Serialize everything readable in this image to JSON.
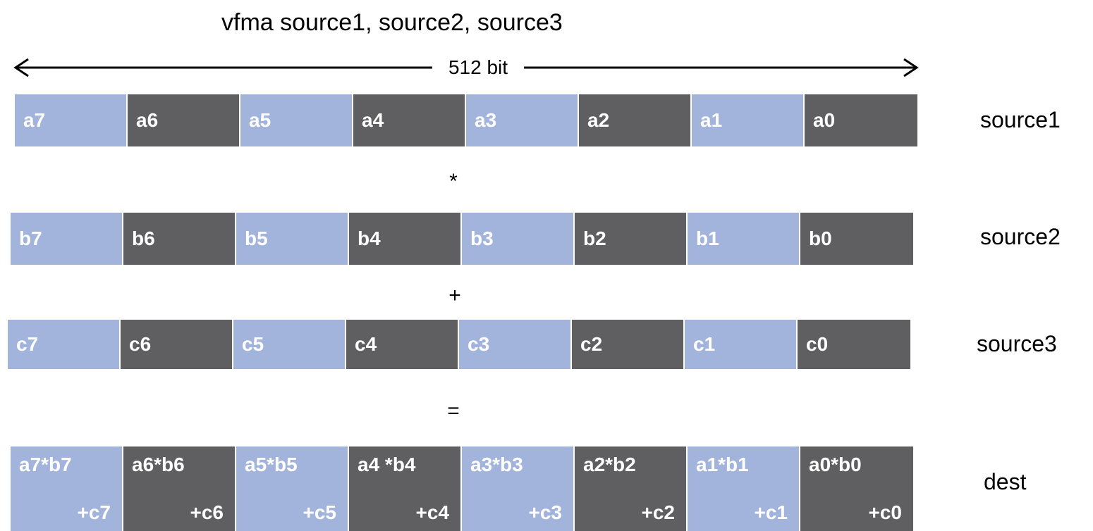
{
  "title": "vfma source1, source2, source3",
  "bit_width_label": "512 bit",
  "colors": {
    "light": "#a2b4dc",
    "dark": "#5f5f62"
  },
  "source1": {
    "label": "source1",
    "cells": [
      "a7",
      "a6",
      "a5",
      "a4",
      "a3",
      "a2",
      "a1",
      "a0"
    ]
  },
  "op1": "*",
  "source2": {
    "label": "source2",
    "cells": [
      "b7",
      "b6",
      "b5",
      "b4",
      "b3",
      "b2",
      "b1",
      "b0"
    ]
  },
  "op2": "+",
  "source3": {
    "label": "source3",
    "cells": [
      "c7",
      "c6",
      "c5",
      "c4",
      "c3",
      "c2",
      "c1",
      "c0"
    ]
  },
  "op3": "=",
  "dest": {
    "label": "dest",
    "cells": [
      {
        "top": "a7*b7",
        "bottom": "+c7"
      },
      {
        "top": "a6*b6",
        "bottom": "+c6"
      },
      {
        "top": "a5*b5",
        "bottom": "+c5"
      },
      {
        "top": "a4 *b4",
        "bottom": "+c4"
      },
      {
        "top": "a3*b3",
        "bottom": "+c3"
      },
      {
        "top": "a2*b2",
        "bottom": "+c2"
      },
      {
        "top": "a1*b1",
        "bottom": "+c1"
      },
      {
        "top": "a0*b0",
        "bottom": "+c0"
      }
    ]
  }
}
